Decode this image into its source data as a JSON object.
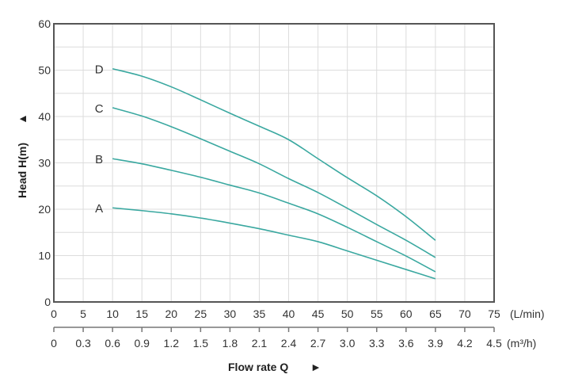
{
  "chart_data": {
    "type": "line",
    "title": "",
    "xlabel": "Flow rate Q",
    "xlabel_arrow": "►",
    "ylabel": "Head H(m)",
    "ylabel_arrow": "▲",
    "x_unit": "(L/min)",
    "x2_unit": "(m³/h)",
    "xlim": [
      0,
      75
    ],
    "ylim": [
      0,
      60
    ],
    "grid": true,
    "x_ticks": [
      "0",
      "5",
      "10",
      "15",
      "20",
      "25",
      "30",
      "35",
      "40",
      "45",
      "50",
      "55",
      "60",
      "65",
      "70",
      "75"
    ],
    "x2_ticks": [
      "0",
      "0.3",
      "0.6",
      "0.9",
      "1.2",
      "1.5",
      "1.8",
      "2.1",
      "2.4",
      "2.7",
      "3.0",
      "3.3",
      "3.6",
      "3.9",
      "4.2",
      "4.5"
    ],
    "y_ticks": [
      "0",
      "10",
      "20",
      "30",
      "40",
      "50",
      "60"
    ],
    "x": [
      10,
      15,
      20,
      25,
      30,
      35,
      40,
      45,
      50,
      55,
      60,
      65
    ],
    "series": [
      {
        "name": "D",
        "values": [
          50.3,
          48.7,
          46.4,
          43.6,
          40.7,
          37.9,
          35.0,
          30.9,
          26.8,
          22.9,
          18.4,
          13.3
        ]
      },
      {
        "name": "C",
        "values": [
          41.9,
          40.1,
          37.8,
          35.2,
          32.5,
          29.8,
          26.6,
          23.6,
          20.2,
          16.7,
          13.3,
          9.6
        ]
      },
      {
        "name": "B",
        "values": [
          30.9,
          29.8,
          28.4,
          26.9,
          25.2,
          23.5,
          21.3,
          19.0,
          16.1,
          13.0,
          9.9,
          6.5
        ]
      },
      {
        "name": "A",
        "values": [
          20.3,
          19.7,
          19.0,
          18.1,
          17.0,
          15.8,
          14.4,
          13.0,
          11.0,
          9.0,
          7.0,
          5.0
        ]
      }
    ],
    "colors": {
      "curve": "#3aa8a0",
      "grid": "#dcdcdc",
      "axis": "#555555"
    }
  }
}
